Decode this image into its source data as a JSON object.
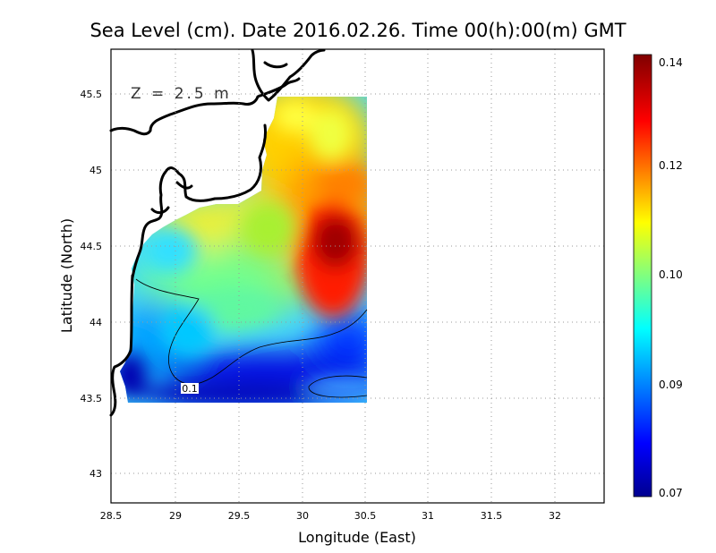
{
  "title": "Sea Level (cm). Date 2016.02.26. Time 00(h):00(m) GMT",
  "depth_label": "Z = 2.5 m",
  "x_axis": {
    "label": "Longitude (East)",
    "range": [
      28.5,
      32.4
    ],
    "ticks": [
      "28.5",
      "29",
      "29.5",
      "30",
      "30.5",
      "31",
      "31.5",
      "32"
    ]
  },
  "y_axis": {
    "label": "Latitude (North)",
    "range": [
      42.8,
      45.8
    ],
    "ticks": [
      "43",
      "43.5",
      "44",
      "44.5",
      "45",
      "45.5"
    ]
  },
  "grid": true,
  "colorbar": {
    "min": 0.07,
    "max": 0.14,
    "ticks": [
      "0.07",
      "0.09",
      "0.10",
      "0.12",
      "0.14"
    ],
    "colors": [
      "#00008f",
      "#0000ff",
      "#00ffff",
      "#ffff00",
      "#ff0000",
      "#800000"
    ]
  },
  "contour_label": "0.1",
  "colors": {
    "low": "#0000c8",
    "mid_low": "#00ccff",
    "mid": "#a6f060",
    "high": "#ffc800",
    "peak": "#960000"
  }
}
